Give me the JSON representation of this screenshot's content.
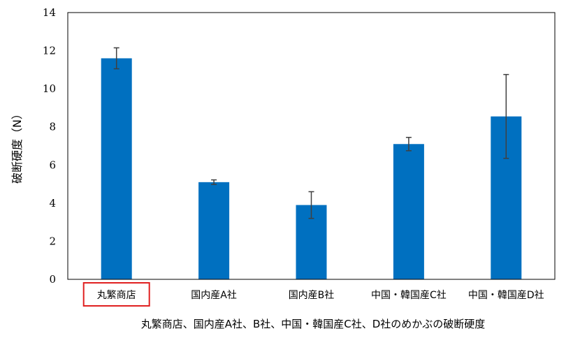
{
  "chart_data": {
    "type": "bar",
    "ylabel": "破断硬度（N）",
    "caption": "丸繁商店、国内産A社、B社、中国・韓国産C社、D社のめかぶの破断硬度",
    "categories": [
      "丸繁商店",
      "国内産A社",
      "国内産B社",
      "中国・韓国産C社",
      "中国・韓国産D社"
    ],
    "values": [
      11.6,
      5.1,
      3.9,
      7.1,
      8.55
    ],
    "errors": [
      0.55,
      0.12,
      0.7,
      0.35,
      2.2
    ],
    "ylim": [
      0,
      14
    ],
    "yticks": [
      0,
      2,
      4,
      6,
      8,
      10,
      12,
      14
    ],
    "highlighted_category": "丸繁商店",
    "bar_color": "#0070C0",
    "highlight_color": "#E02020",
    "grid": false,
    "legend": "none"
  }
}
